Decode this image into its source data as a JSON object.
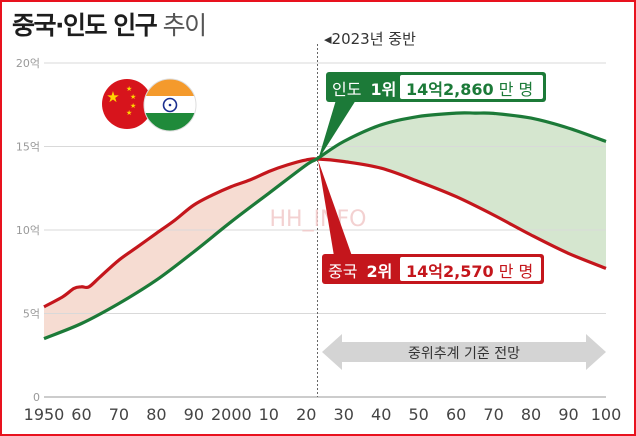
{
  "title": {
    "bold": "중국·인도 인구",
    "light": "추이"
  },
  "colors": {
    "china": "#c4161c",
    "india": "#1c7a38",
    "china_fill": "#f6dcd2",
    "india_fill": "#d5e6cf",
    "frame": "#e8121e",
    "axis_text": "#444444",
    "grid": "#d9d9d9",
    "arrow_band": "#d4d4d4"
  },
  "flags": [
    "china-flag",
    "india-flag"
  ],
  "chart_data": {
    "type": "line",
    "title": "중국·인도 인구 추이",
    "xlabel": "",
    "ylabel": "",
    "xlim": [
      1950,
      2100
    ],
    "ylim": [
      0,
      20
    ],
    "y_ticks": [
      0,
      5,
      10,
      15,
      20
    ],
    "y_tick_labels": [
      "0",
      "5억",
      "10억",
      "15억",
      "20억"
    ],
    "x_ticks": [
      1950,
      1960,
      1970,
      1980,
      1990,
      2000,
      2010,
      2020,
      2030,
      2040,
      2050,
      2060,
      2070,
      2080,
      2090,
      2100
    ],
    "x_tick_labels": [
      "1950",
      "60",
      "70",
      "80",
      "90",
      "2000",
      "10",
      "20",
      "30",
      "40",
      "50",
      "60",
      "70",
      "80",
      "90",
      "100"
    ],
    "divider_year": 2023,
    "divider_label": "◂2023년 중반",
    "projection_label": "중위추계 기준 전망",
    "watermark": "HH_INFO",
    "series": [
      {
        "name": "중국",
        "color": "#c4161c",
        "x": [
          1950,
          1955,
          1958,
          1960,
          1962,
          1965,
          1970,
          1975,
          1980,
          1985,
          1990,
          1995,
          2000,
          2005,
          2010,
          2015,
          2020,
          2023,
          2030,
          2040,
          2050,
          2060,
          2070,
          2080,
          2090,
          2100
        ],
        "values": [
          5.4,
          6.0,
          6.5,
          6.6,
          6.6,
          7.2,
          8.2,
          9.0,
          9.8,
          10.6,
          11.5,
          12.1,
          12.6,
          13.0,
          13.5,
          13.9,
          14.2,
          14.25,
          14.1,
          13.7,
          12.9,
          12.0,
          10.9,
          9.7,
          8.6,
          7.7
        ]
      },
      {
        "name": "인도",
        "color": "#1c7a38",
        "x": [
          1950,
          1960,
          1970,
          1980,
          1990,
          2000,
          2010,
          2020,
          2023,
          2030,
          2040,
          2050,
          2060,
          2065,
          2070,
          2080,
          2090,
          2100
        ],
        "values": [
          3.5,
          4.4,
          5.6,
          7.0,
          8.7,
          10.5,
          12.2,
          13.9,
          14.28,
          15.3,
          16.3,
          16.8,
          17.0,
          17.0,
          16.98,
          16.7,
          16.1,
          15.3
        ]
      }
    ],
    "annotations": [
      {
        "country": "인도",
        "rank": "1위",
        "value": "14억2,860만 명",
        "value_num": "14억2,860",
        "value_unit": "만 명"
      },
      {
        "country": "중국",
        "rank": "2위",
        "value": "14억2,570만 명",
        "value_num": "14억2,570",
        "value_unit": "만 명"
      }
    ]
  }
}
